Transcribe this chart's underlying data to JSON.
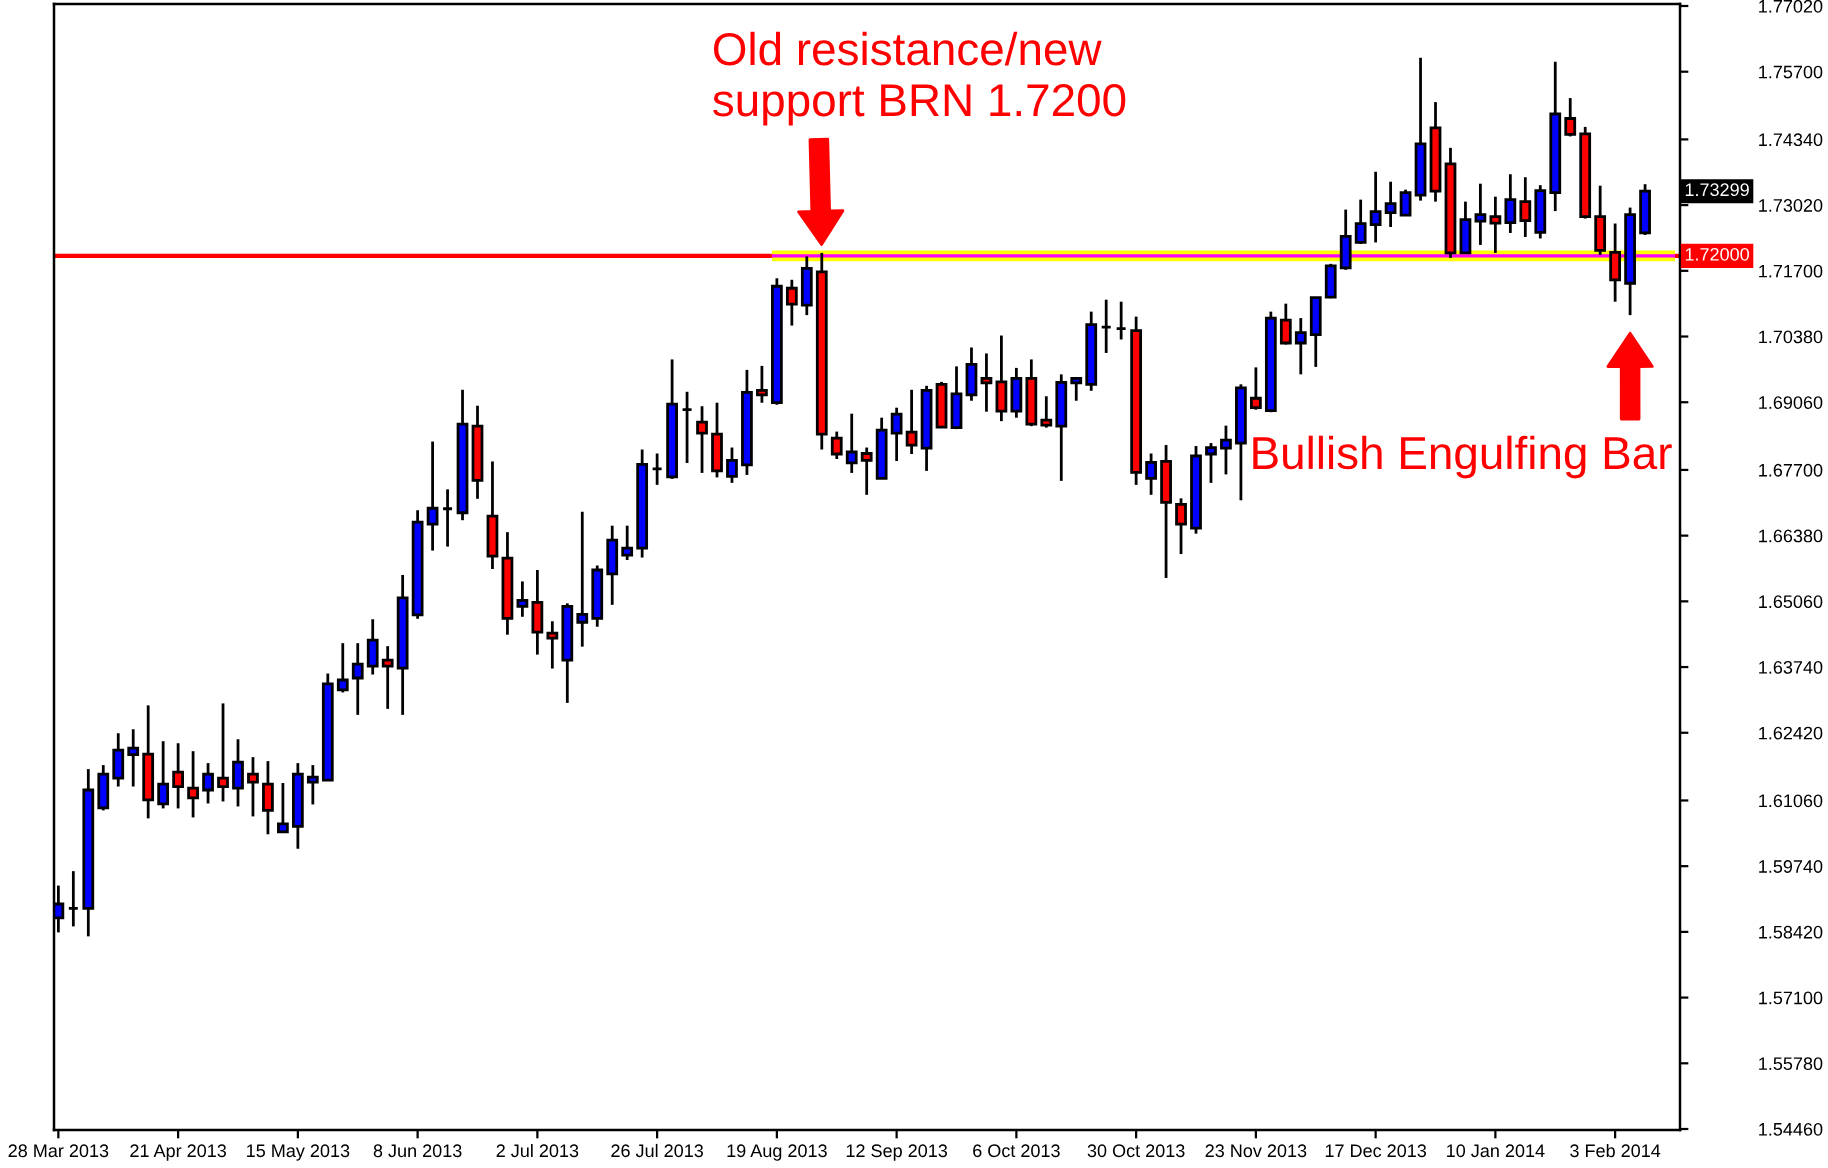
{
  "chart_data": {
    "type": "candlestick",
    "x": [
      "2013-03-28",
      "2013-03-31",
      "2013-04-03",
      "2013-04-06",
      "2013-04-09",
      "2013-04-12",
      "2013-04-15",
      "2013-04-18",
      "2013-04-21",
      "2013-04-24",
      "2013-04-27",
      "2013-04-30",
      "2013-05-03",
      "2013-05-06",
      "2013-05-09",
      "2013-05-12",
      "2013-05-15",
      "2013-05-18",
      "2013-05-21",
      "2013-05-24",
      "2013-05-27",
      "2013-05-30",
      "2013-06-02",
      "2013-06-05",
      "2013-06-08",
      "2013-06-11",
      "2013-06-14",
      "2013-06-17",
      "2013-06-20",
      "2013-06-23",
      "2013-06-26",
      "2013-06-29",
      "2013-07-02",
      "2013-07-05",
      "2013-07-08",
      "2013-07-11",
      "2013-07-14",
      "2013-07-17",
      "2013-07-20",
      "2013-07-23",
      "2013-07-26",
      "2013-07-29",
      "2013-08-01",
      "2013-08-04",
      "2013-08-07",
      "2013-08-10",
      "2013-08-13",
      "2013-08-16",
      "2013-08-19",
      "2013-08-22",
      "2013-08-25",
      "2013-08-28",
      "2013-08-31",
      "2013-09-03",
      "2013-09-06",
      "2013-09-09",
      "2013-09-12",
      "2013-09-15",
      "2013-09-18",
      "2013-09-21",
      "2013-09-24",
      "2013-09-27",
      "2013-09-30",
      "2013-10-03",
      "2013-10-06",
      "2013-10-09",
      "2013-10-12",
      "2013-10-15",
      "2013-10-18",
      "2013-10-21",
      "2013-10-24",
      "2013-10-27",
      "2013-10-30",
      "2013-11-02",
      "2013-11-05",
      "2013-11-08",
      "2013-11-11",
      "2013-11-14",
      "2013-11-17",
      "2013-11-20",
      "2013-11-23",
      "2013-11-26",
      "2013-11-29",
      "2013-12-02",
      "2013-12-05",
      "2013-12-08",
      "2013-12-11",
      "2013-12-14",
      "2013-12-17",
      "2013-12-20",
      "2013-12-23",
      "2013-12-26",
      "2013-12-29",
      "2014-01-01",
      "2014-01-04",
      "2014-01-07",
      "2014-01-10",
      "2014-01-13",
      "2014-01-16",
      "2014-01-19",
      "2014-01-22",
      "2014-01-25",
      "2014-01-28",
      "2014-01-31",
      "2014-02-03",
      "2014-02-06",
      "2014-02-09"
    ],
    "ohlc": [
      [
        1.587,
        1.5935,
        1.5841,
        1.5898
      ],
      [
        1.5889,
        1.5964,
        1.5853,
        1.5889
      ],
      [
        1.5889,
        1.6169,
        1.5833,
        1.6127
      ],
      [
        1.6091,
        1.6177,
        1.6086,
        1.6159
      ],
      [
        1.6151,
        1.6241,
        1.6134,
        1.6207
      ],
      [
        1.6198,
        1.6249,
        1.6134,
        1.6211
      ],
      [
        1.6199,
        1.6297,
        1.607,
        1.6107
      ],
      [
        1.6099,
        1.6225,
        1.609,
        1.6139
      ],
      [
        1.6163,
        1.6221,
        1.609,
        1.6134
      ],
      [
        1.6131,
        1.6205,
        1.6072,
        1.6111
      ],
      [
        1.6127,
        1.6181,
        1.61,
        1.6159
      ],
      [
        1.6151,
        1.6301,
        1.6104,
        1.6134
      ],
      [
        1.6131,
        1.6229,
        1.6094,
        1.6183
      ],
      [
        1.6159,
        1.6193,
        1.6074,
        1.6143
      ],
      [
        1.6139,
        1.6185,
        1.6038,
        1.6086
      ],
      [
        1.6043,
        1.6141,
        1.6042,
        1.6059
      ],
      [
        1.6054,
        1.6181,
        1.6009,
        1.6159
      ],
      [
        1.6143,
        1.6177,
        1.6098,
        1.6153
      ],
      [
        1.6147,
        1.6361,
        1.6146,
        1.634
      ],
      [
        1.6328,
        1.6422,
        1.6323,
        1.6348
      ],
      [
        1.6352,
        1.6422,
        1.6278,
        1.638
      ],
      [
        1.6376,
        1.647,
        1.6359,
        1.6428
      ],
      [
        1.6388,
        1.6416,
        1.629,
        1.6376
      ],
      [
        1.6372,
        1.6559,
        1.6278,
        1.6513
      ],
      [
        1.6479,
        1.6689,
        1.6471,
        1.6665
      ],
      [
        1.6661,
        1.6827,
        1.6608,
        1.6693
      ],
      [
        1.6692,
        1.6731,
        1.6616,
        1.6692
      ],
      [
        1.6684,
        1.6931,
        1.6669,
        1.6862
      ],
      [
        1.6858,
        1.6899,
        1.6712,
        1.6749
      ],
      [
        1.6677,
        1.6787,
        1.6571,
        1.6597
      ],
      [
        1.6593,
        1.6645,
        1.6439,
        1.6472
      ],
      [
        1.6496,
        1.6546,
        1.6475,
        1.6508
      ],
      [
        1.6504,
        1.6569,
        1.6399,
        1.6444
      ],
      [
        1.6442,
        1.6466,
        1.6371,
        1.6432
      ],
      [
        1.6388,
        1.6502,
        1.6302,
        1.6496
      ],
      [
        1.6464,
        1.6686,
        1.6415,
        1.648
      ],
      [
        1.6472,
        1.6578,
        1.6455,
        1.6569
      ],
      [
        1.6561,
        1.6658,
        1.6499,
        1.6629
      ],
      [
        1.6599,
        1.6658,
        1.6589,
        1.6613
      ],
      [
        1.6613,
        1.6811,
        1.6594,
        1.6781
      ],
      [
        1.6772,
        1.6803,
        1.674,
        1.6772
      ],
      [
        1.6756,
        1.6992,
        1.6752,
        1.6902
      ],
      [
        1.6891,
        1.6927,
        1.6784,
        1.6891
      ],
      [
        1.6866,
        1.6898,
        1.6764,
        1.6844
      ],
      [
        1.6842,
        1.6905,
        1.6755,
        1.6768
      ],
      [
        1.6757,
        1.6815,
        1.6744,
        1.6789
      ],
      [
        1.678,
        1.6971,
        1.676,
        1.6926
      ],
      [
        1.693,
        1.6979,
        1.6905,
        1.6921
      ],
      [
        1.6905,
        1.7155,
        1.6901,
        1.7139
      ],
      [
        1.7135,
        1.7152,
        1.706,
        1.7103
      ],
      [
        1.7101,
        1.7199,
        1.7081,
        1.7175
      ],
      [
        1.7168,
        1.7206,
        1.6811,
        1.6842
      ],
      [
        1.6834,
        1.6847,
        1.6792,
        1.6802
      ],
      [
        1.6784,
        1.6883,
        1.6764,
        1.6806
      ],
      [
        1.6803,
        1.6815,
        1.672,
        1.6789
      ],
      [
        1.6753,
        1.6875,
        1.6752,
        1.685
      ],
      [
        1.6844,
        1.6895,
        1.6788,
        1.6882
      ],
      [
        1.6846,
        1.6931,
        1.6802,
        1.682
      ],
      [
        1.6814,
        1.6939,
        1.6768,
        1.693
      ],
      [
        1.6942,
        1.6947,
        1.6855,
        1.6856
      ],
      [
        1.6855,
        1.6978,
        1.6852,
        1.6923
      ],
      [
        1.6921,
        1.7016,
        1.6909,
        1.6982
      ],
      [
        1.6954,
        1.7004,
        1.6887,
        1.6945
      ],
      [
        1.6947,
        1.704,
        1.6868,
        1.6888
      ],
      [
        1.6888,
        1.6975,
        1.6875,
        1.6954
      ],
      [
        1.6954,
        1.6992,
        1.6858,
        1.6862
      ],
      [
        1.687,
        1.6918,
        1.6855,
        1.686
      ],
      [
        1.6858,
        1.6962,
        1.6748,
        1.6946
      ],
      [
        1.6945,
        1.6955,
        1.6909,
        1.6954
      ],
      [
        1.6942,
        1.7088,
        1.6929,
        1.7062
      ],
      [
        1.7057,
        1.7112,
        1.7005,
        1.7057
      ],
      [
        1.7054,
        1.7108,
        1.7032,
        1.7054
      ],
      [
        1.705,
        1.7078,
        1.674,
        1.6765
      ],
      [
        1.6753,
        1.6803,
        1.672,
        1.6785
      ],
      [
        1.6787,
        1.682,
        1.6553,
        1.6705
      ],
      [
        1.6701,
        1.6713,
        1.6601,
        1.6661
      ],
      [
        1.6653,
        1.6818,
        1.6642,
        1.6798
      ],
      [
        1.6802,
        1.6824,
        1.6744,
        1.6815
      ],
      [
        1.6814,
        1.6859,
        1.6761,
        1.683
      ],
      [
        1.6824,
        1.6942,
        1.6709,
        1.6935
      ],
      [
        1.6914,
        1.6976,
        1.6891,
        1.6895
      ],
      [
        1.6889,
        1.7088,
        1.6886,
        1.7075
      ],
      [
        1.7071,
        1.7104,
        1.7022,
        1.7025
      ],
      [
        1.7025,
        1.7075,
        1.6962,
        1.7046
      ],
      [
        1.7042,
        1.7116,
        1.6977,
        1.7116
      ],
      [
        1.7117,
        1.7184,
        1.7115,
        1.718
      ],
      [
        1.7176,
        1.7293,
        1.7172,
        1.7239
      ],
      [
        1.7227,
        1.7313,
        1.7224,
        1.7265
      ],
      [
        1.7263,
        1.7369,
        1.7227,
        1.7289
      ],
      [
        1.7287,
        1.7349,
        1.7258,
        1.7305
      ],
      [
        1.7282,
        1.7333,
        1.7281,
        1.7327
      ],
      [
        1.7322,
        1.7598,
        1.7311,
        1.7425
      ],
      [
        1.7457,
        1.7509,
        1.7309,
        1.733
      ],
      [
        1.7385,
        1.7417,
        1.7196,
        1.7206
      ],
      [
        1.7206,
        1.7309,
        1.7205,
        1.7273
      ],
      [
        1.727,
        1.7345,
        1.7222,
        1.7283
      ],
      [
        1.7279,
        1.7319,
        1.7206,
        1.7266
      ],
      [
        1.7267,
        1.7364,
        1.7246,
        1.7313
      ],
      [
        1.7309,
        1.7358,
        1.7238,
        1.7271
      ],
      [
        1.7247,
        1.7342,
        1.7235,
        1.7331
      ],
      [
        1.7327,
        1.759,
        1.729,
        1.7485
      ],
      [
        1.7476,
        1.7517,
        1.744,
        1.7444
      ],
      [
        1.7445,
        1.7459,
        1.7275,
        1.7279
      ],
      [
        1.7279,
        1.7341,
        1.7202,
        1.7211
      ],
      [
        1.7207,
        1.7265,
        1.7108,
        1.7152
      ],
      [
        1.7145,
        1.7297,
        1.7081,
        1.7283
      ],
      [
        1.7246,
        1.7344,
        1.7242,
        1.733
      ]
    ],
    "colors": [
      "#0000ff",
      "#000000",
      "#0000ff",
      "#0000ff",
      "#0000ff",
      "#0000ff",
      "#ff0000",
      "#0000ff",
      "#ff0000",
      "#ff0000",
      "#0000ff",
      "#ff0000",
      "#0000ff",
      "#ff0000",
      "#ff0000",
      "#0000ff",
      "#0000ff",
      "#0000ff",
      "#0000ff",
      "#0000ff",
      "#0000ff",
      "#0000ff",
      "#ff0000",
      "#0000ff",
      "#0000ff",
      "#0000ff",
      "#000000",
      "#0000ff",
      "#ff0000",
      "#ff0000",
      "#ff0000",
      "#0000ff",
      "#ff0000",
      "#ff0000",
      "#0000ff",
      "#0000ff",
      "#0000ff",
      "#0000ff",
      "#0000ff",
      "#0000ff",
      "#000000",
      "#0000ff",
      "#000000",
      "#ff0000",
      "#ff0000",
      "#0000ff",
      "#0000ff",
      "#ff0000",
      "#0000ff",
      "#ff0000",
      "#0000ff",
      "#ff0000",
      "#ff0000",
      "#0000ff",
      "#ff0000",
      "#0000ff",
      "#0000ff",
      "#ff0000",
      "#0000ff",
      "#ff0000",
      "#0000ff",
      "#0000ff",
      "#ff0000",
      "#ff0000",
      "#0000ff",
      "#ff0000",
      "#ff0000",
      "#0000ff",
      "#0000ff",
      "#0000ff",
      "#000000",
      "#000000",
      "#ff0000",
      "#0000ff",
      "#ff0000",
      "#ff0000",
      "#0000ff",
      "#0000ff",
      "#0000ff",
      "#0000ff",
      "#ff0000",
      "#0000ff",
      "#ff0000",
      "#0000ff",
      "#0000ff",
      "#0000ff",
      "#0000ff",
      "#0000ff",
      "#0000ff",
      "#0000ff",
      "#0000ff",
      "#0000ff",
      "#ff0000",
      "#ff0000",
      "#0000ff",
      "#0000ff",
      "#ff0000",
      "#0000ff",
      "#ff0000",
      "#0000ff",
      "#0000ff",
      "#ff0000",
      "#ff0000",
      "#ff0000",
      "#ff0000",
      "#0000ff",
      "#0000ff"
    ],
    "series": [
      {
        "type": "line",
        "color": "#ffff00",
        "x": [
          "2013-08-18",
          "2014-02-15"
        ],
        "values": [
          1.72,
          1.72
        ]
      },
      {
        "type": "line",
        "color": "#ff00ff",
        "x": [
          "2013-08-18",
          "2014-02-15"
        ],
        "values": [
          1.72,
          1.72
        ]
      }
    ],
    "ref_lines": [
      {
        "axis": "y",
        "value": 1.72,
        "label": "1.72000",
        "color": "#ff0000",
        "line_style": "solid"
      }
    ],
    "annotations": [
      {
        "text": "Old resistance/new\nsupport BRN 1.7200",
        "x": "2013-08-28",
        "y": 1.7206
      },
      {
        "text": "Bullish Engulfing Bar",
        "x": "2014-02-06",
        "y": 1.7081
      },
      {
        "text": "1.73299",
        "y": 1.73299
      }
    ],
    "xlim": [
      "2013-03-27T03:00",
      "2014-02-16T00:00"
    ],
    "xticks": [
      {
        "value": "2013-03-28",
        "label": "28 Mar 2013"
      },
      {
        "value": "2013-04-21",
        "label": "21 Apr 2013"
      },
      {
        "value": "2013-05-15",
        "label": "15 May 2013"
      },
      {
        "value": "2013-06-08",
        "label": "8 Jun 2013"
      },
      {
        "value": "2013-07-02",
        "label": "2 Jul 2013"
      },
      {
        "value": "2013-07-26",
        "label": "26 Jul 2013"
      },
      {
        "value": "2013-08-19",
        "label": "19 Aug 2013"
      },
      {
        "value": "2013-09-12",
        "label": "12 Sep 2013"
      },
      {
        "value": "2013-10-06",
        "label": "6 Oct 2013"
      },
      {
        "value": "2013-10-30",
        "label": "30 Oct 2013"
      },
      {
        "value": "2013-11-23",
        "label": "23 Nov 2013"
      },
      {
        "value": "2013-12-17",
        "label": "17 Dec 2013"
      },
      {
        "value": "2014-01-10",
        "label": "10 Jan 2014"
      },
      {
        "value": "2014-02-03",
        "label": "3 Feb 2014"
      }
    ],
    "ylim": [
      1.5444,
      1.7706
    ],
    "yticks": [
      {
        "value": 1.7702,
        "label": "1.77020"
      },
      {
        "value": 1.757,
        "label": "1.75700"
      },
      {
        "value": 1.7434,
        "label": "1.74340"
      },
      {
        "value": 1.7302,
        "label": "1.73020"
      },
      {
        "value": 1.717,
        "label": "1.71700"
      },
      {
        "value": 1.7038,
        "label": "1.70380"
      },
      {
        "value": 1.6906,
        "label": "1.69060"
      },
      {
        "value": 1.677,
        "label": "1.67700"
      },
      {
        "value": 1.6638,
        "label": "1.66380"
      },
      {
        "value": 1.6506,
        "label": "1.65060"
      },
      {
        "value": 1.6374,
        "label": "1.63740"
      },
      {
        "value": 1.6242,
        "label": "1.62420"
      },
      {
        "value": 1.6106,
        "label": "1.61060"
      },
      {
        "value": 1.5974,
        "label": "1.59740"
      },
      {
        "value": 1.5842,
        "label": "1.58420"
      },
      {
        "value": 1.571,
        "label": "1.57100"
      },
      {
        "value": 1.5578,
        "label": "1.55780"
      },
      {
        "value": 1.5446,
        "label": "1.54460"
      }
    ],
    "grid": false
  }
}
